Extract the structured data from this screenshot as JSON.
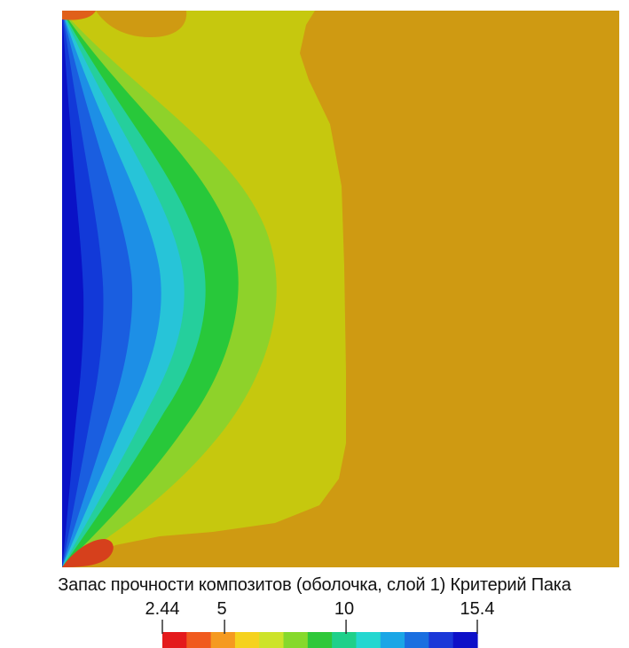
{
  "caption": "Запас прочности композитов (оболочка, слой 1) Критерий Пака",
  "colorbar": {
    "min_label": "2.44",
    "tick_labels": [
      "2.44",
      "5",
      "10",
      "15.4"
    ],
    "tick_values": [
      2.44,
      5,
      10,
      15.4
    ],
    "range": [
      2.44,
      15.4
    ],
    "bands": [
      "#e41a1c",
      "#f05a1e",
      "#f59a20",
      "#f5d21e",
      "#cde32a",
      "#86d92c",
      "#2fc83a",
      "#1fd08a",
      "#24d7d0",
      "#1aa6e6",
      "#1a6fe0",
      "#1a38d8",
      "#0d10c8"
    ]
  },
  "field_colors": {
    "base": "#cf9a12",
    "yellow_green": "#c6c80e",
    "light_green": "#8ed22a",
    "green": "#28c83a",
    "teal": "#25cf9c",
    "cyan": "#27c4d8",
    "light_blue": "#1d8fe6",
    "blue": "#1a5ee0",
    "dark_blue": "#1239d8",
    "navy": "#0a12c6",
    "red": "#d6401c",
    "orange_red": "#e0601a"
  }
}
